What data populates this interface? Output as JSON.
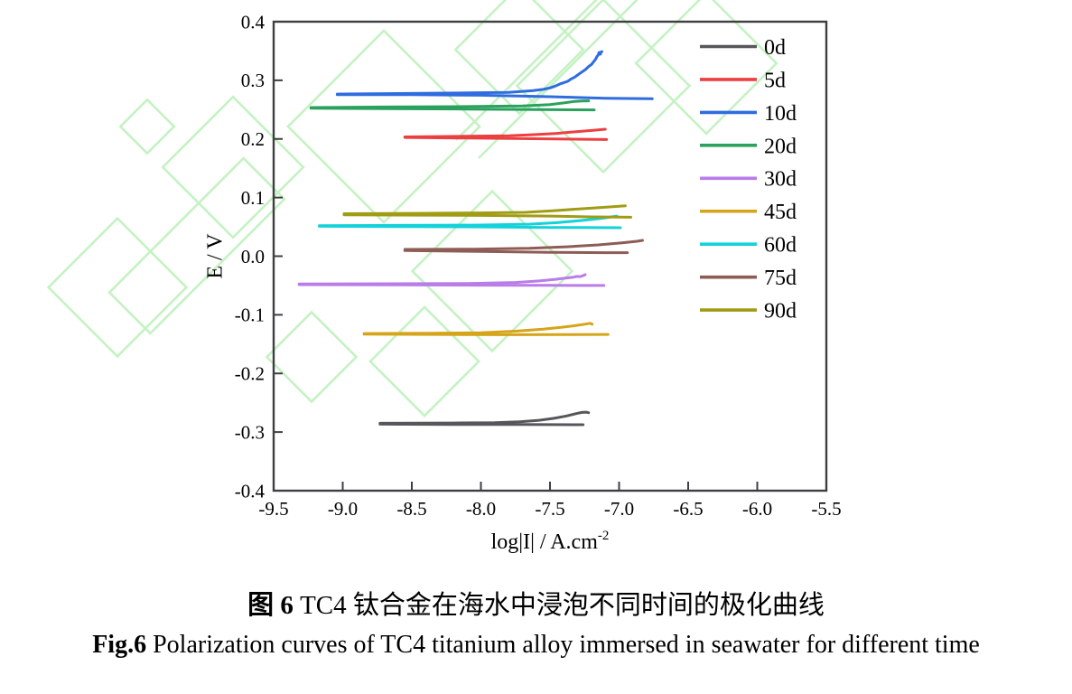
{
  "figure": {
    "caption_zh_bold": "图 6",
    "caption_zh_rest": " TC4 钛合金在海水中浸泡不同时间的极化曲线",
    "caption_en_bold": "Fig.6",
    "caption_en_rest": " Polarization curves of TC4 titanium alloy immersed in seawater for different time"
  },
  "colors": {
    "watermark": "#c5f2c3",
    "axis": "#3d3f41",
    "text": "#000000"
  },
  "chart_data": {
    "type": "line",
    "title": "",
    "xlabel_main": "log|I| / A.cm",
    "xlabel_sup": "-2",
    "ylabel": "E / V",
    "xlim": [
      -9.5,
      -5.5
    ],
    "ylim": [
      -0.4,
      0.4
    ],
    "xticks": [
      -9.5,
      -9.0,
      -8.5,
      -8.0,
      -7.5,
      -7.0,
      -6.5,
      -6.0,
      -5.5
    ],
    "xtick_labels": [
      "-9.5",
      "-9.0",
      "-8.5",
      "-8.0",
      "-7.5",
      "-7.0",
      "-6.5",
      "-6.0",
      "-5.5"
    ],
    "yticks": [
      0.4,
      0.3,
      0.2,
      0.1,
      0.0,
      -0.1,
      -0.2,
      -0.3,
      -0.4
    ],
    "ytick_labels": [
      "0.4",
      "0.3",
      "0.2",
      "0.1",
      "0.0",
      "-0.1",
      "-0.2",
      "-0.3",
      "-0.4"
    ],
    "grid": false,
    "legend_position": "inside-top-right",
    "series": [
      {
        "name": "0d",
        "color": "#57575b",
        "ecorr_V": -0.286,
        "anodic": [
          [
            -8.73,
            -0.285
          ],
          [
            -8.2,
            -0.2845
          ],
          [
            -7.9,
            -0.284
          ],
          [
            -7.72,
            -0.2825
          ],
          [
            -7.58,
            -0.28
          ],
          [
            -7.47,
            -0.2765
          ],
          [
            -7.38,
            -0.2725
          ],
          [
            -7.31,
            -0.2685
          ],
          [
            -7.27,
            -0.2665
          ],
          [
            -7.24,
            -0.266
          ],
          [
            -7.22,
            -0.267
          ]
        ],
        "cathodic": [
          [
            -8.73,
            -0.2865
          ],
          [
            -8.2,
            -0.287
          ],
          [
            -7.7,
            -0.2872
          ],
          [
            -7.26,
            -0.2875
          ]
        ]
      },
      {
        "name": "5d",
        "color": "#ec3f41",
        "ecorr_V": 0.202,
        "anodic": [
          [
            -8.55,
            0.2035
          ],
          [
            -8.1,
            0.2045
          ],
          [
            -7.8,
            0.2055
          ],
          [
            -7.6,
            0.2075
          ],
          [
            -7.45,
            0.2095
          ],
          [
            -7.3,
            0.2125
          ],
          [
            -7.18,
            0.2148
          ],
          [
            -7.1,
            0.2165
          ]
        ],
        "cathodic": [
          [
            -8.55,
            0.2025
          ],
          [
            -8.1,
            0.2015
          ],
          [
            -7.7,
            0.2005
          ],
          [
            -7.4,
            0.1998
          ],
          [
            -7.09,
            0.199
          ]
        ]
      },
      {
        "name": "10d",
        "color": "#2f6ce0",
        "ecorr_V": 0.276,
        "anodic": [
          [
            -9.04,
            0.2765
          ],
          [
            -8.6,
            0.2775
          ],
          [
            -8.1,
            0.2785
          ],
          [
            -7.8,
            0.2795
          ],
          [
            -7.62,
            0.2825
          ],
          [
            -7.55,
            0.2845
          ],
          [
            -7.5,
            0.287
          ],
          [
            -7.47,
            0.2895
          ],
          [
            -7.44,
            0.2925
          ],
          [
            -7.42,
            0.2945
          ],
          [
            -7.4,
            0.296
          ],
          [
            -7.37,
            0.2985
          ],
          [
            -7.35,
            0.302
          ],
          [
            -7.32,
            0.3055
          ],
          [
            -7.3,
            0.309
          ],
          [
            -7.28,
            0.3125
          ],
          [
            -7.26,
            0.3155
          ],
          [
            -7.24,
            0.319
          ],
          [
            -7.22,
            0.3235
          ],
          [
            -7.2,
            0.327
          ],
          [
            -7.185,
            0.3315
          ],
          [
            -7.17,
            0.336
          ],
          [
            -7.16,
            0.3405
          ],
          [
            -7.15,
            0.3435
          ],
          [
            -7.145,
            0.3475
          ],
          [
            -7.135,
            0.3445
          ],
          [
            -7.13,
            0.3485
          ],
          [
            -7.125,
            0.349
          ]
        ],
        "cathodic": [
          [
            -9.04,
            0.2755
          ],
          [
            -8.5,
            0.2755
          ],
          [
            -8.0,
            0.2745
          ],
          [
            -7.5,
            0.272
          ],
          [
            -7.1,
            0.2695
          ],
          [
            -6.76,
            0.2685
          ]
        ]
      },
      {
        "name": "20d",
        "color": "#2ba15e",
        "ecorr_V": 0.253,
        "anodic": [
          [
            -9.23,
            0.2535
          ],
          [
            -8.7,
            0.2545
          ],
          [
            -8.1,
            0.2552
          ],
          [
            -7.7,
            0.2562
          ],
          [
            -7.5,
            0.2585
          ],
          [
            -7.4,
            0.2615
          ],
          [
            -7.32,
            0.264
          ],
          [
            -7.27,
            0.2648
          ],
          [
            -7.22,
            0.265
          ]
        ],
        "cathodic": [
          [
            -9.23,
            0.2525
          ],
          [
            -8.7,
            0.2515
          ],
          [
            -8.1,
            0.251
          ],
          [
            -7.6,
            0.2502
          ],
          [
            -7.18,
            0.2495
          ]
        ]
      },
      {
        "name": "30d",
        "color": "#b97ce9",
        "ecorr_V": -0.048,
        "anodic": [
          [
            -9.315,
            -0.0475
          ],
          [
            -8.7,
            -0.047
          ],
          [
            -8.1,
            -0.0465
          ],
          [
            -7.75,
            -0.0448
          ],
          [
            -7.58,
            -0.0422
          ],
          [
            -7.46,
            -0.0395
          ],
          [
            -7.38,
            -0.0372
          ],
          [
            -7.33,
            -0.0358
          ],
          [
            -7.305,
            -0.0345
          ],
          [
            -7.28,
            -0.0348
          ],
          [
            -7.26,
            -0.0332
          ],
          [
            -7.245,
            -0.0315
          ]
        ],
        "cathodic": [
          [
            -9.315,
            -0.0485
          ],
          [
            -8.6,
            -0.049
          ],
          [
            -8.0,
            -0.0495
          ],
          [
            -7.5,
            -0.0498
          ],
          [
            -7.11,
            -0.05
          ]
        ]
      },
      {
        "name": "45d",
        "color": "#d5a419",
        "ecorr_V": -0.132,
        "anodic": [
          [
            -8.845,
            -0.132
          ],
          [
            -8.35,
            -0.1315
          ],
          [
            -8.0,
            -0.1305
          ],
          [
            -7.75,
            -0.128
          ],
          [
            -7.55,
            -0.1245
          ],
          [
            -7.42,
            -0.1215
          ],
          [
            -7.32,
            -0.1185
          ],
          [
            -7.25,
            -0.116
          ],
          [
            -7.21,
            -0.1145
          ],
          [
            -7.195,
            -0.116
          ]
        ],
        "cathodic": [
          [
            -8.845,
            -0.133
          ],
          [
            -8.35,
            -0.1335
          ],
          [
            -7.85,
            -0.134
          ],
          [
            -7.4,
            -0.1338
          ],
          [
            -7.08,
            -0.1335
          ]
        ]
      },
      {
        "name": "60d",
        "color": "#14d2d9",
        "ecorr_V": 0.051,
        "anodic": [
          [
            -9.17,
            0.052
          ],
          [
            -8.6,
            0.0525
          ],
          [
            -8.05,
            0.053
          ],
          [
            -7.65,
            0.0545
          ],
          [
            -7.45,
            0.0572
          ],
          [
            -7.28,
            0.0608
          ],
          [
            -7.12,
            0.0648
          ],
          [
            -7.015,
            0.0685
          ]
        ],
        "cathodic": [
          [
            -9.17,
            0.051
          ],
          [
            -8.6,
            0.0505
          ],
          [
            -8.0,
            0.05
          ],
          [
            -7.5,
            0.049
          ],
          [
            -6.99,
            0.0485
          ]
        ]
      },
      {
        "name": "75d",
        "color": "#8d5c55",
        "ecorr_V": 0.01,
        "anodic": [
          [
            -8.55,
            0.0115
          ],
          [
            -8.05,
            0.012
          ],
          [
            -7.65,
            0.0135
          ],
          [
            -7.38,
            0.016
          ],
          [
            -7.15,
            0.0192
          ],
          [
            -6.98,
            0.0228
          ],
          [
            -6.87,
            0.0255
          ],
          [
            -6.83,
            0.027
          ]
        ],
        "cathodic": [
          [
            -8.55,
            0.0095
          ],
          [
            -8.0,
            0.008
          ],
          [
            -7.5,
            0.0065
          ],
          [
            -7.1,
            0.006
          ],
          [
            -6.94,
            0.006
          ]
        ]
      },
      {
        "name": "90d",
        "color": "#a09c14",
        "ecorr_V": 0.071,
        "anodic": [
          [
            -8.99,
            0.0725
          ],
          [
            -8.45,
            0.073
          ],
          [
            -8.0,
            0.0738
          ],
          [
            -7.68,
            0.0748
          ],
          [
            -7.48,
            0.0775
          ],
          [
            -7.28,
            0.0808
          ],
          [
            -7.08,
            0.0838
          ],
          [
            -6.955,
            0.0858
          ]
        ],
        "cathodic": [
          [
            -8.99,
            0.0705
          ],
          [
            -8.45,
            0.07
          ],
          [
            -8.0,
            0.0695
          ],
          [
            -7.5,
            0.0685
          ],
          [
            -7.2,
            0.067
          ],
          [
            -6.915,
            0.0665
          ]
        ]
      }
    ]
  }
}
